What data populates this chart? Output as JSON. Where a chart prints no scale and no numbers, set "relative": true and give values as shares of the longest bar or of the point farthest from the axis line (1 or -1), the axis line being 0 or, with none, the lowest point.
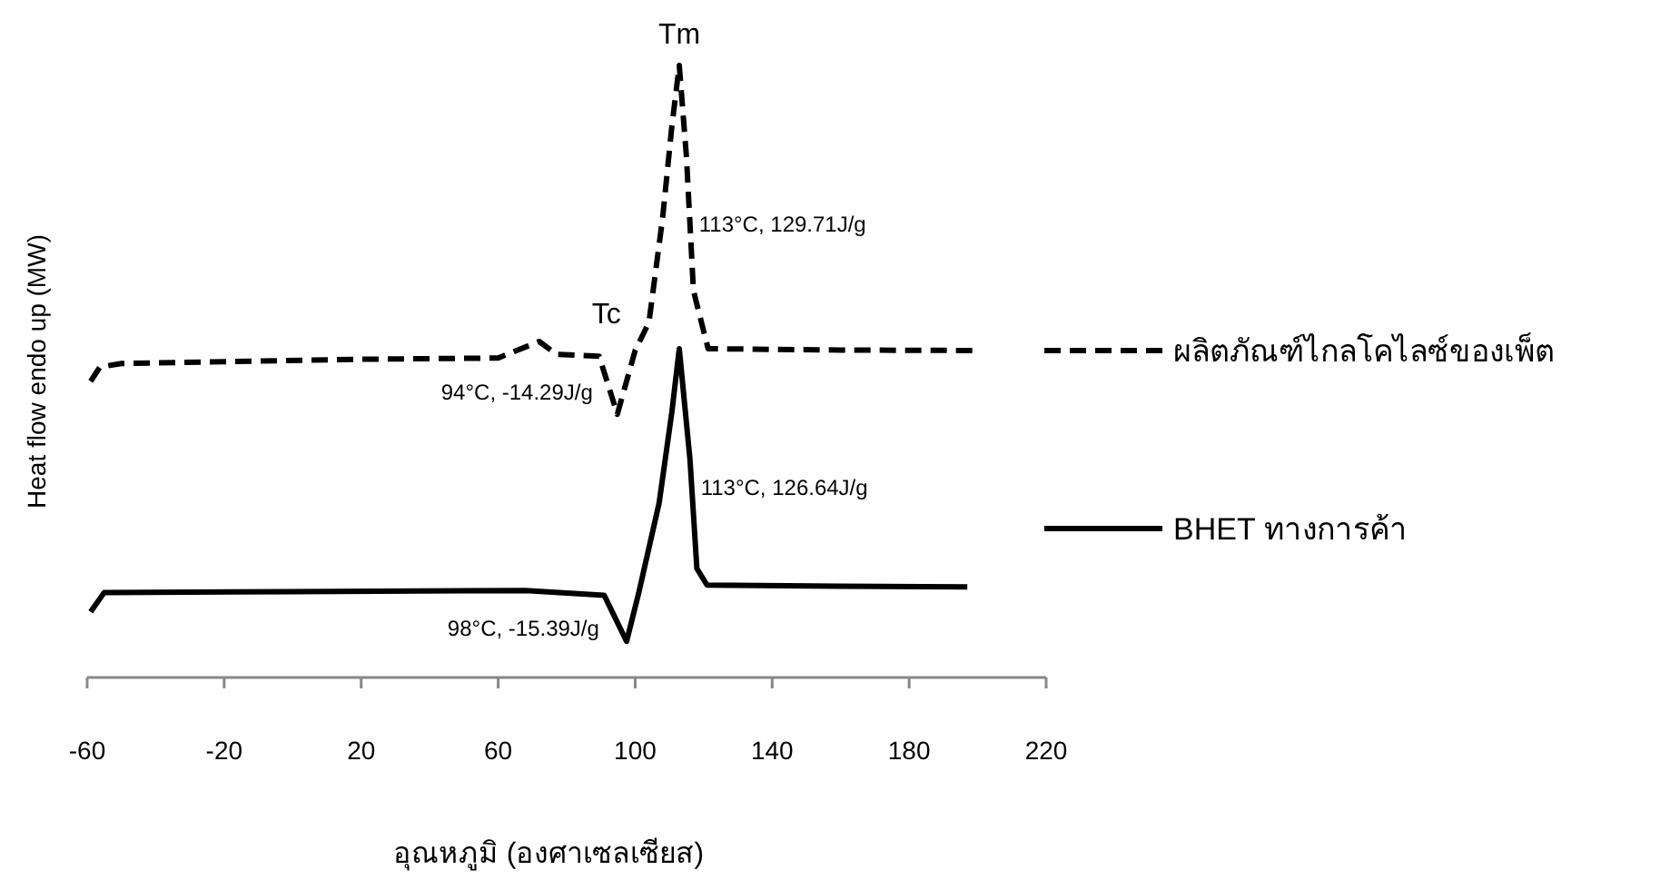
{
  "chart_data": {
    "type": "line",
    "relative": true,
    "xlabel": "อุณหภูมิ (องศาเซลเซียส)",
    "ylabel": "Heat flow endo up (MW)",
    "xlim": [
      -60,
      220
    ],
    "xticks": [
      -60,
      -20,
      20,
      60,
      100,
      140,
      180,
      220
    ],
    "legend": "right",
    "grid": false,
    "series": [
      {
        "name": "ผลิตภัณฑ์ไกลโคไลซ์ของเพ็ต",
        "color": "#000000",
        "line_style": "dashed",
        "x": [
          -59,
          -56.3,
          -50,
          20,
          60,
          72,
          77,
          89.5,
          94.8,
          100,
          104,
          108,
          110.7,
          112.9,
          115,
          117,
          121.3,
          160,
          200
        ],
        "values": [
          0.484,
          0.507,
          0.513,
          0.52,
          0.522,
          0.549,
          0.528,
          0.525,
          0.43,
          0.534,
          0.58,
          0.75,
          0.9,
          1,
          0.849,
          0.632,
          0.537,
          0.535,
          0.534
        ]
      },
      {
        "name": "BHET ทางการค้า",
        "color": "#000000",
        "line_style": "solid",
        "x": [
          -59,
          -55,
          0,
          68,
          91,
          97.5,
          101,
          107,
          110.7,
          112.9,
          116,
          118,
          121,
          160,
          197
        ],
        "values": [
          0.107,
          0.139,
          0.14,
          0.142,
          0.134,
          0.059,
          0.137,
          0.285,
          0.433,
          0.537,
          0.356,
          0.178,
          0.151,
          0.149,
          0.148
        ]
      }
    ],
    "annotations": [
      {
        "text": "Tm",
        "x": 112.9,
        "y": 1
      },
      {
        "text": "Tc",
        "x": 94.8,
        "y": 0.43
      },
      {
        "text": "113°C, 129.71J/g",
        "x": 116,
        "y": 0.74
      },
      {
        "text": "94°C, -14.29J/g",
        "x": 94,
        "y": 0.43
      },
      {
        "text": "113°C, 126.64J/g",
        "x": 116.5,
        "y": 0.31
      },
      {
        "text": "98°C, -15.39J/g",
        "x": 98,
        "y": 0.059
      }
    ]
  }
}
